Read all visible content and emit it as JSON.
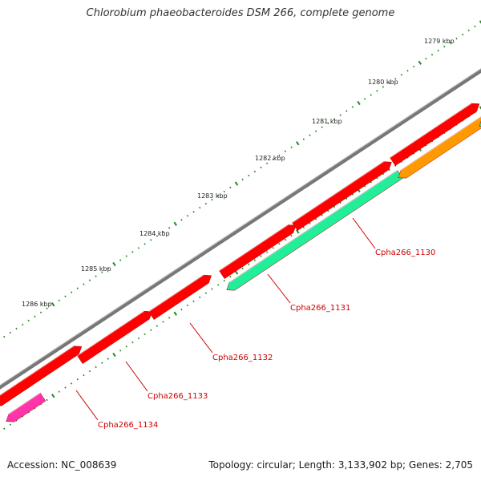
{
  "title": "Chlorobium phaeobacteroides DSM 266, complete genome",
  "footer": {
    "accession": "Accession: NC_008639",
    "topology": "Topology: circular; Length: 3,133,902 bp; Genes: 2,705"
  },
  "colors": {
    "backbone": "#777777",
    "tick": "#228822",
    "label_line": "#cc0000",
    "gene_red": "#ff0000",
    "gene_teal": "#22ee99",
    "gene_orange": "#ff9900",
    "gene_pink": "#ff33aa"
  },
  "ticks": [
    {
      "label": "1279 kbp"
    },
    {
      "label": "1280 kbp"
    },
    {
      "label": "1281 kbp"
    },
    {
      "label": "1282 kbp"
    },
    {
      "label": "1283 kbp"
    },
    {
      "label": "1284 kbp"
    },
    {
      "label": "1285 kbp"
    },
    {
      "label": "1286 kbp"
    }
  ],
  "genes": [
    {
      "label": "Cpha266_1130"
    },
    {
      "label": "Cpha266_1131"
    },
    {
      "label": "Cpha266_1132"
    },
    {
      "label": "Cpha266_1133"
    },
    {
      "label": "Cpha266_1134"
    }
  ]
}
